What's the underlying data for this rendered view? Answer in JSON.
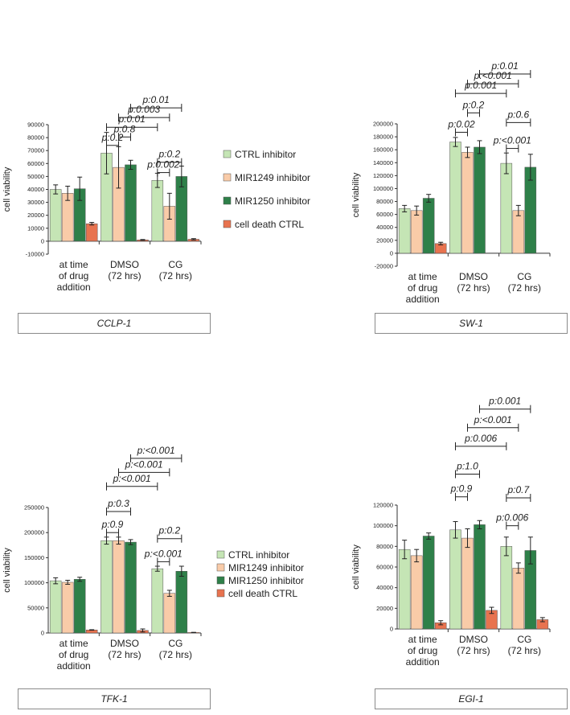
{
  "colors": {
    "ctrl": "#c5e5b5",
    "mir1249": "#f9cba8",
    "mir1250": "#2e8049",
    "death": "#e8734f",
    "border": "#555555"
  },
  "legend": [
    "CTRL inhibitor",
    "MIR1249 inhibitor",
    "MIR1250 inhibitor",
    "cell death CTRL"
  ],
  "chart_data": [
    {
      "type": "bar",
      "panel_label": "CCLP-1",
      "ylabel": "cell viability",
      "ylim": [
        -10000,
        90000
      ],
      "yticks": [
        "-10000",
        "0",
        "10000",
        "20000",
        "30000",
        "40000",
        "50000",
        "60000",
        "70000",
        "80000",
        "90000"
      ],
      "categories": [
        [
          "at time",
          "of drug",
          "addition"
        ],
        [
          "DMSO",
          "(72 hrs)"
        ],
        [
          "CG",
          "(72 hrs)"
        ]
      ],
      "series": [
        {
          "name": "CTRL inhibitor",
          "values": [
            40000,
            68000,
            47000
          ],
          "errors": [
            3500,
            16000,
            5500
          ]
        },
        {
          "name": "MIR1249 inhibitor",
          "values": [
            37000,
            57000,
            27000
          ],
          "errors": [
            5500,
            16000,
            10000
          ]
        },
        {
          "name": "MIR1250 inhibitor",
          "values": [
            40500,
            59000,
            50000
          ],
          "errors": [
            9000,
            3500,
            8000
          ]
        },
        {
          "name": "cell death CTRL",
          "values": [
            13500,
            1000,
            1500
          ],
          "errors": [
            1000,
            300,
            500
          ]
        }
      ],
      "annotations": [
        {
          "text": "p:0.2",
          "from": [
            1,
            0
          ],
          "to": [
            1,
            1
          ],
          "y": 74000
        },
        {
          "text": "p:0.8",
          "from": [
            1,
            1
          ],
          "to": [
            1,
            2
          ],
          "y": 80500
        },
        {
          "text": "p:0.01",
          "from": [
            1,
            0
          ],
          "to": [
            2,
            0
          ],
          "y": 88000
        },
        {
          "text": "p:0.003",
          "from": [
            1,
            1
          ],
          "to": [
            2,
            1
          ],
          "y": 95500
        },
        {
          "text": "p:0.01",
          "from": [
            1,
            2
          ],
          "to": [
            2,
            2
          ],
          "y": 103000
        },
        {
          "text": "p:0.002",
          "from": [
            2,
            0
          ],
          "to": [
            2,
            1
          ],
          "y": 53000
        },
        {
          "text": "p:0.2",
          "from": [
            2,
            0
          ],
          "to": [
            2,
            2
          ],
          "y": 61000
        }
      ]
    },
    {
      "type": "bar",
      "panel_label": "SW-1",
      "ylabel": "cell viability",
      "ylim": [
        -20000,
        200000
      ],
      "yticks": [
        "-20000",
        "0",
        "20000",
        "40000",
        "60000",
        "80000",
        "100000",
        "120000",
        "140000",
        "160000",
        "180000",
        "200000"
      ],
      "categories": [
        [
          "at time",
          "of drug",
          "addition"
        ],
        [
          "DMSO",
          "(72 hrs)"
        ],
        [
          "CG",
          "(72 hrs)"
        ]
      ],
      "series": [
        {
          "name": "CTRL inhibitor",
          "values": [
            69000,
            172000,
            139000
          ],
          "errors": [
            5000,
            7000,
            16000
          ]
        },
        {
          "name": "MIR1249 inhibitor",
          "values": [
            66000,
            156000,
            66000
          ],
          "errors": [
            7000,
            8000,
            8000
          ]
        },
        {
          "name": "MIR1250 inhibitor",
          "values": [
            85000,
            164000,
            133000
          ],
          "errors": [
            6000,
            10000,
            20000
          ]
        },
        {
          "name": "cell death CTRL",
          "values": [
            15000,
            0,
            0
          ],
          "errors": [
            2000,
            0,
            0
          ]
        }
      ],
      "annotations": [
        {
          "text": "p:0.02",
          "from": [
            1,
            0
          ],
          "to": [
            1,
            1
          ],
          "y": 187000
        },
        {
          "text": "p:0.2",
          "from": [
            1,
            1
          ],
          "to": [
            1,
            2
          ],
          "y": 217000
        },
        {
          "text": "p:0.001",
          "from": [
            1,
            0
          ],
          "to": [
            2,
            0
          ],
          "y": 247000
        },
        {
          "text": "p:<0.001",
          "from": [
            1,
            1
          ],
          "to": [
            2,
            1
          ],
          "y": 262000
        },
        {
          "text": "p:0.01",
          "from": [
            1,
            2
          ],
          "to": [
            2,
            2
          ],
          "y": 277000
        },
        {
          "text": "p:<0.001",
          "from": [
            2,
            0
          ],
          "to": [
            2,
            1
          ],
          "y": 162000
        },
        {
          "text": "p:0.6",
          "from": [
            2,
            0
          ],
          "to": [
            2,
            2
          ],
          "y": 202000
        }
      ]
    },
    {
      "type": "bar",
      "panel_label": "TFK-1",
      "ylabel": "cell viability",
      "ylim": [
        0,
        250000
      ],
      "yticks": [
        "0",
        "50000",
        "100000",
        "150000",
        "200000",
        "250000"
      ],
      "categories": [
        [
          "at time",
          "of drug",
          "addition"
        ],
        [
          "DMSO",
          "(72 hrs)"
        ],
        [
          "CG",
          "(72 hrs)"
        ]
      ],
      "series": [
        {
          "name": "CTRL inhibitor",
          "values": [
            104000,
            184000,
            128000
          ],
          "errors": [
            6000,
            7000,
            5000
          ]
        },
        {
          "name": "MIR1249 inhibitor",
          "values": [
            101000,
            184000,
            79000
          ],
          "errors": [
            4000,
            7000,
            6000
          ]
        },
        {
          "name": "MIR1250 inhibitor",
          "values": [
            107000,
            181000,
            123000
          ],
          "errors": [
            4000,
            5000,
            10000
          ]
        },
        {
          "name": "cell death CTRL",
          "values": [
            6000,
            5000,
            1000
          ],
          "errors": [
            500,
            3000,
            300
          ]
        }
      ],
      "annotations": [
        {
          "text": "p:0.9",
          "from": [
            1,
            0
          ],
          "to": [
            1,
            1
          ],
          "y": 200000
        },
        {
          "text": "p:0.3",
          "from": [
            1,
            0
          ],
          "to": [
            1,
            2
          ],
          "y": 242000
        },
        {
          "text": "p:<0.001",
          "from": [
            1,
            0
          ],
          "to": [
            2,
            0
          ],
          "y": 292000
        },
        {
          "text": "p:<0.001",
          "from": [
            1,
            1
          ],
          "to": [
            2,
            1
          ],
          "y": 320000
        },
        {
          "text": "p:<0.001",
          "from": [
            1,
            2
          ],
          "to": [
            2,
            2
          ],
          "y": 348000
        },
        {
          "text": "p:<0.001",
          "from": [
            2,
            0
          ],
          "to": [
            2,
            1
          ],
          "y": 142000
        },
        {
          "text": "p:0.2",
          "from": [
            2,
            0
          ],
          "to": [
            2,
            2
          ],
          "y": 188000
        }
      ]
    },
    {
      "type": "bar",
      "panel_label": "EGI-1",
      "ylabel": "cell viability",
      "ylim": [
        0,
        120000
      ],
      "yticks": [
        "0",
        "20000",
        "40000",
        "60000",
        "80000",
        "100000",
        "120000"
      ],
      "categories": [
        [
          "at time",
          "of drug",
          "addition"
        ],
        [
          "DMSO",
          "(72 hrs)"
        ],
        [
          "CG",
          "(72 hrs)"
        ]
      ],
      "series": [
        {
          "name": "CTRL inhibitor",
          "values": [
            77000,
            96000,
            80000
          ],
          "errors": [
            9000,
            8000,
            9000
          ]
        },
        {
          "name": "MIR1249 inhibitor",
          "values": [
            71000,
            88000,
            59000
          ],
          "errors": [
            6000,
            9000,
            5000
          ]
        },
        {
          "name": "MIR1250 inhibitor",
          "values": [
            90000,
            101000,
            76000
          ],
          "errors": [
            3000,
            4000,
            13000
          ]
        },
        {
          "name": "cell death CTRL",
          "values": [
            6000,
            18000,
            9000
          ],
          "errors": [
            2000,
            3000,
            2000
          ]
        }
      ],
      "annotations": [
        {
          "text": "p:0.9",
          "from": [
            1,
            0
          ],
          "to": [
            1,
            1
          ],
          "y": 128000
        },
        {
          "text": "p:1.0",
          "from": [
            1,
            0
          ],
          "to": [
            1,
            2
          ],
          "y": 150000
        },
        {
          "text": "p:0.006",
          "from": [
            1,
            0
          ],
          "to": [
            2,
            0
          ],
          "y": 177000
        },
        {
          "text": "p:<0.001",
          "from": [
            1,
            1
          ],
          "to": [
            2,
            1
          ],
          "y": 195000
        },
        {
          "text": "p:0.001",
          "from": [
            1,
            2
          ],
          "to": [
            2,
            2
          ],
          "y": 213000
        },
        {
          "text": "p:0.006",
          "from": [
            2,
            0
          ],
          "to": [
            2,
            1
          ],
          "y": 100000
        },
        {
          "text": "p:0.7",
          "from": [
            2,
            0
          ],
          "to": [
            2,
            2
          ],
          "y": 127000
        }
      ]
    }
  ]
}
